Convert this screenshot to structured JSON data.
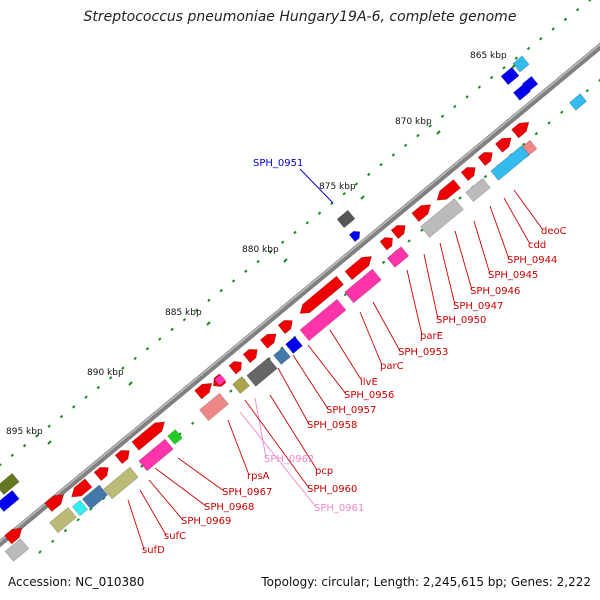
{
  "title": "Streptococcus pneumoniae Hungary19A-6, complete genome",
  "footer": {
    "accession": "Accession: NC_010380",
    "summary": "Topology: circular; Length: 2,245,615 bp; Genes: 2,222"
  },
  "scale_ticks": [
    {
      "label": "865 kbp"
    },
    {
      "label": "870 kbp"
    },
    {
      "label": "875 kbp"
    },
    {
      "label": "880 kbp"
    },
    {
      "label": "885 kbp"
    },
    {
      "label": "890 kbp"
    },
    {
      "label": "895 kbp"
    }
  ],
  "gene_labels": [
    {
      "text": "SPH_0951",
      "color": "#0000cc"
    },
    {
      "text": "deoC",
      "color": "#cc0000"
    },
    {
      "text": "cdd",
      "color": "#cc0000"
    },
    {
      "text": "SPH_0944",
      "color": "#cc0000"
    },
    {
      "text": "SPH_0945",
      "color": "#cc0000"
    },
    {
      "text": "SPH_0946",
      "color": "#cc0000"
    },
    {
      "text": "SPH_0947",
      "color": "#cc0000"
    },
    {
      "text": "SPH_0950",
      "color": "#cc0000"
    },
    {
      "text": "parE",
      "color": "#cc0000"
    },
    {
      "text": "SPH_0953",
      "color": "#cc0000"
    },
    {
      "text": "parC",
      "color": "#cc0000"
    },
    {
      "text": "ilvE",
      "color": "#cc0000"
    },
    {
      "text": "SPH_0956",
      "color": "#cc0000"
    },
    {
      "text": "SPH_0957",
      "color": "#cc0000"
    },
    {
      "text": "SPH_0958",
      "color": "#cc0000"
    },
    {
      "text": "SPH_0962",
      "color": "#ee88cc"
    },
    {
      "text": "pcp",
      "color": "#cc0000"
    },
    {
      "text": "SPH_0960",
      "color": "#cc0000"
    },
    {
      "text": "SPH_0961",
      "color": "#ee88cc"
    },
    {
      "text": "rpsA",
      "color": "#cc0000"
    },
    {
      "text": "SPH_0967",
      "color": "#cc0000"
    },
    {
      "text": "SPH_0968",
      "color": "#cc0000"
    },
    {
      "text": "SPH_0969",
      "color": "#cc0000"
    },
    {
      "text": "sufC",
      "color": "#cc0000"
    },
    {
      "text": "sufD",
      "color": "#cc0000"
    }
  ],
  "colors": {
    "backbone": "#7a7a7a",
    "forward_cds": "#ee0000",
    "reverse_cds": "#ee0000",
    "rrna": "#ff33aa",
    "trna": "#0000dd",
    "tick_dots": "#1a8a1a"
  }
}
